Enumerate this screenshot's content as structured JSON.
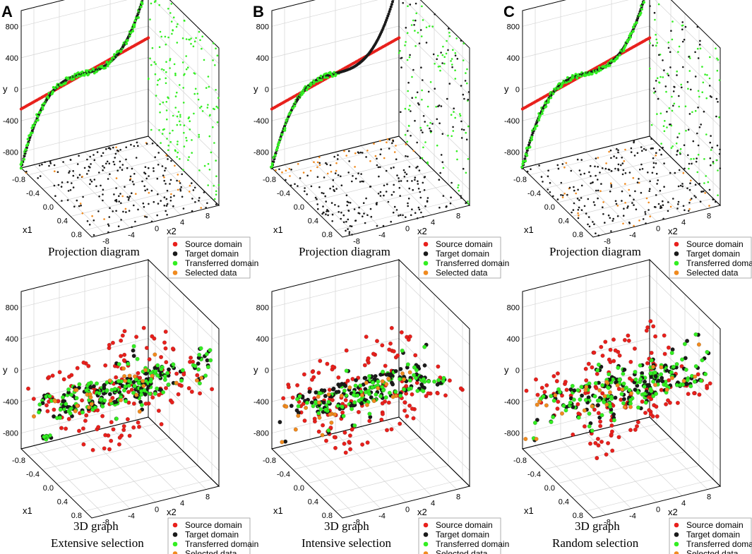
{
  "figure": {
    "panel_letters": [
      "A",
      "B",
      "C"
    ],
    "legend": [
      {
        "label": "Source domain",
        "color": "#e8201c"
      },
      {
        "label": "Target domain",
        "color": "#1a1a1a"
      },
      {
        "label": "Transferred domain",
        "color": "#33ee22"
      },
      {
        "label": "Selected data",
        "color": "#f08a1e"
      }
    ]
  },
  "chart_data": [
    {
      "type": "scatter3d",
      "column": "A",
      "row": "projection",
      "caption": [
        "Projection diagram"
      ],
      "xlabel": "x1",
      "ylabel": "x2",
      "zlabel": "y",
      "x1_ticks": [
        "-0.8",
        "-0.4",
        "0.0",
        "0.4",
        "0.8"
      ],
      "x1_range": [
        -1,
        1
      ],
      "x2_ticks": [
        "-8",
        "-4",
        "0",
        "4",
        "8"
      ],
      "x2_range": [
        -10,
        10
      ],
      "y_ticks": [
        "-800",
        "-400",
        "0",
        "400",
        "800"
      ],
      "y_range": [
        -1000,
        1000
      ],
      "model": {
        "source": "y = 25*x2",
        "target": "y = 1000*x1^3"
      },
      "series": [
        "Source domain",
        "Target domain",
        "Transferred domain",
        "Selected data"
      ],
      "selection": "extensive",
      "seed": 11
    },
    {
      "type": "scatter3d",
      "column": "B",
      "row": "projection",
      "caption": [
        "Projection diagram"
      ],
      "xlabel": "x1",
      "ylabel": "x2",
      "zlabel": "y",
      "x1_ticks": [
        "-0.8",
        "-0.4",
        "0.0",
        "0.4",
        "0.8"
      ],
      "x1_range": [
        -1,
        1
      ],
      "x2_ticks": [
        "-8",
        "-4",
        "0",
        "4",
        "8"
      ],
      "x2_range": [
        -10,
        10
      ],
      "y_ticks": [
        "-800",
        "-400",
        "0",
        "400",
        "800"
      ],
      "y_range": [
        -1000,
        1000
      ],
      "model": {
        "source": "y = 25*x2",
        "target": "y = 1000*x1^3"
      },
      "series": [
        "Source domain",
        "Target domain",
        "Transferred domain",
        "Selected data"
      ],
      "selection": "intensive",
      "seed": 23
    },
    {
      "type": "scatter3d",
      "column": "C",
      "row": "projection",
      "caption": [
        "Projection diagram"
      ],
      "xlabel": "x1",
      "ylabel": "x2",
      "zlabel": "y",
      "x1_ticks": [
        "-0.8",
        "-0.4",
        "0.0",
        "0.4",
        "0.8"
      ],
      "x1_range": [
        -1,
        1
      ],
      "x2_ticks": [
        "-8",
        "-4",
        "0",
        "4",
        "8"
      ],
      "x2_range": [
        -10,
        10
      ],
      "y_ticks": [
        "-800",
        "-400",
        "0",
        "400",
        "800"
      ],
      "y_range": [
        -1000,
        1000
      ],
      "model": {
        "source": "y = 25*x2",
        "target": "y = 1000*x1^3"
      },
      "series": [
        "Source domain",
        "Target domain",
        "Transferred domain",
        "Selected data"
      ],
      "selection": "random",
      "seed": 37
    },
    {
      "type": "scatter3d",
      "column": "A",
      "row": "3d",
      "caption": [
        "3D graph",
        "Extensive  selection"
      ],
      "xlabel": "x1",
      "ylabel": "x2",
      "zlabel": "y",
      "x1_ticks": [
        "-0.8",
        "-0.4",
        "0.0",
        "0.4",
        "0.8"
      ],
      "x1_range": [
        -1,
        1
      ],
      "x2_ticks": [
        "-8",
        "-4",
        "0",
        "4",
        "8"
      ],
      "x2_range": [
        -10,
        10
      ],
      "y_ticks": [
        "-800",
        "-400",
        "0",
        "400",
        "800"
      ],
      "y_range": [
        -1000,
        1000
      ],
      "model": {
        "source": "y = 25*x2",
        "target": "y = 1000*x1^3"
      },
      "series": [
        "Source domain",
        "Target domain",
        "Transferred domain",
        "Selected data"
      ],
      "selection": "extensive",
      "seed": 41
    },
    {
      "type": "scatter3d",
      "column": "B",
      "row": "3d",
      "caption": [
        "3D graph",
        "Intensive  selection"
      ],
      "xlabel": "x1",
      "ylabel": "x2",
      "zlabel": "y",
      "x1_ticks": [
        "-0.8",
        "-0.4",
        "0.0",
        "0.4",
        "0.8"
      ],
      "x1_range": [
        -1,
        1
      ],
      "x2_ticks": [
        "-8",
        "-4",
        "0",
        "4",
        "8"
      ],
      "x2_range": [
        -10,
        10
      ],
      "y_ticks": [
        "-800",
        "-400",
        "0",
        "400",
        "800"
      ],
      "y_range": [
        -1000,
        1000
      ],
      "model": {
        "source": "y = 25*x2",
        "target": "y = 1000*x1^3"
      },
      "series": [
        "Source domain",
        "Target domain",
        "Transferred domain",
        "Selected data"
      ],
      "selection": "intensive",
      "seed": 53
    },
    {
      "type": "scatter3d",
      "column": "C",
      "row": "3d",
      "caption": [
        "3D graph",
        "Random  selection"
      ],
      "xlabel": "x1",
      "ylabel": "x2",
      "zlabel": "y",
      "x1_ticks": [
        "-0.8",
        "-0.4",
        "0.0",
        "0.4",
        "0.8"
      ],
      "x1_range": [
        -1,
        1
      ],
      "x2_ticks": [
        "-8",
        "-4",
        "0",
        "4",
        "8"
      ],
      "x2_range": [
        -10,
        10
      ],
      "y_ticks": [
        "-800",
        "-400",
        "0",
        "400",
        "800"
      ],
      "y_range": [
        -1000,
        1000
      ],
      "model": {
        "source": "y = 25*x2",
        "target": "y = 1000*x1^3"
      },
      "series": [
        "Source domain",
        "Target domain",
        "Transferred domain",
        "Selected data"
      ],
      "selection": "random",
      "seed": 67
    }
  ]
}
